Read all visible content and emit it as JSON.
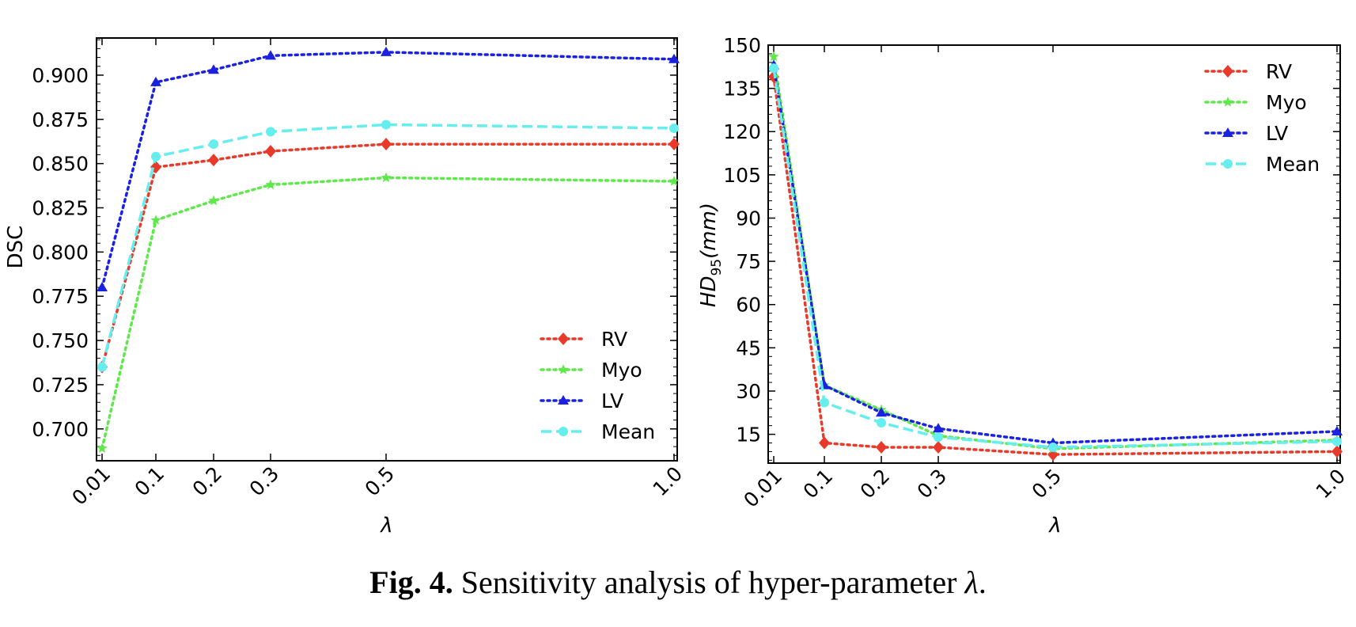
{
  "caption": {
    "label": "Fig. 4.",
    "text": "Sensitivity analysis of hyper-parameter ",
    "symbol": "λ",
    "end": "."
  },
  "colors": {
    "RV": "#e8392a",
    "Myo": "#5ee84a",
    "LV": "#1a22e0",
    "Mean": "#66eeee"
  },
  "chart_data": [
    {
      "type": "line",
      "xlabel": "λ",
      "ylabel": "DSC",
      "x": [
        0.01,
        0.1,
        0.2,
        0.3,
        0.5,
        1.0
      ],
      "x_tick_labels": [
        "0.01",
        "0.1",
        "0.2",
        "0.3",
        "0.5",
        "1.0"
      ],
      "ylim": [
        0.682,
        0.921
      ],
      "y_ticks": [
        0.7,
        0.725,
        0.75,
        0.775,
        0.8,
        0.825,
        0.85,
        0.875,
        0.9
      ],
      "y_tick_labels": [
        "0.700",
        "0.725",
        "0.750",
        "0.775",
        "0.800",
        "0.825",
        "0.850",
        "0.875",
        "0.900"
      ],
      "legend": "lower-right",
      "series": [
        {
          "name": "RV",
          "values": [
            0.735,
            0.848,
            0.852,
            0.857,
            0.861,
            0.861
          ],
          "marker": "diamond",
          "line": "dotted"
        },
        {
          "name": "Myo",
          "values": [
            0.689,
            0.818,
            0.829,
            0.838,
            0.842,
            0.84
          ],
          "marker": "star",
          "line": "dotted"
        },
        {
          "name": "LV",
          "values": [
            0.78,
            0.896,
            0.903,
            0.911,
            0.913,
            0.909
          ],
          "marker": "triangle",
          "line": "dotted"
        },
        {
          "name": "Mean",
          "values": [
            0.735,
            0.854,
            0.861,
            0.868,
            0.872,
            0.87
          ],
          "marker": "circle",
          "line": "dashed"
        }
      ]
    },
    {
      "type": "line",
      "xlabel": "λ",
      "ylabel": "HD95(mm)",
      "x": [
        0.01,
        0.1,
        0.2,
        0.3,
        0.5,
        1.0
      ],
      "x_tick_labels": [
        "0.01",
        "0.1",
        "0.2",
        "0.3",
        "0.5",
        "1.0"
      ],
      "ylim": [
        5,
        150
      ],
      "y_ticks": [
        15,
        30,
        45,
        60,
        75,
        90,
        105,
        120,
        135,
        150
      ],
      "y_tick_labels": [
        "15",
        "30",
        "45",
        "60",
        "75",
        "90",
        "105",
        "120",
        "135",
        "150"
      ],
      "legend": "upper-right",
      "series": [
        {
          "name": "RV",
          "values": [
            139,
            12,
            10.5,
            10.5,
            8,
            9
          ],
          "marker": "diamond",
          "line": "dotted"
        },
        {
          "name": "Myo",
          "values": [
            146,
            32,
            23.5,
            14.5,
            10,
            13
          ],
          "marker": "star",
          "line": "dotted"
        },
        {
          "name": "LV",
          "values": [
            143,
            32,
            22.5,
            17,
            12,
            16
          ],
          "marker": "triangle",
          "line": "dotted"
        },
        {
          "name": "Mean",
          "values": [
            142,
            26,
            19,
            14,
            10.5,
            12.5
          ],
          "marker": "circle",
          "line": "dashed"
        }
      ]
    }
  ]
}
